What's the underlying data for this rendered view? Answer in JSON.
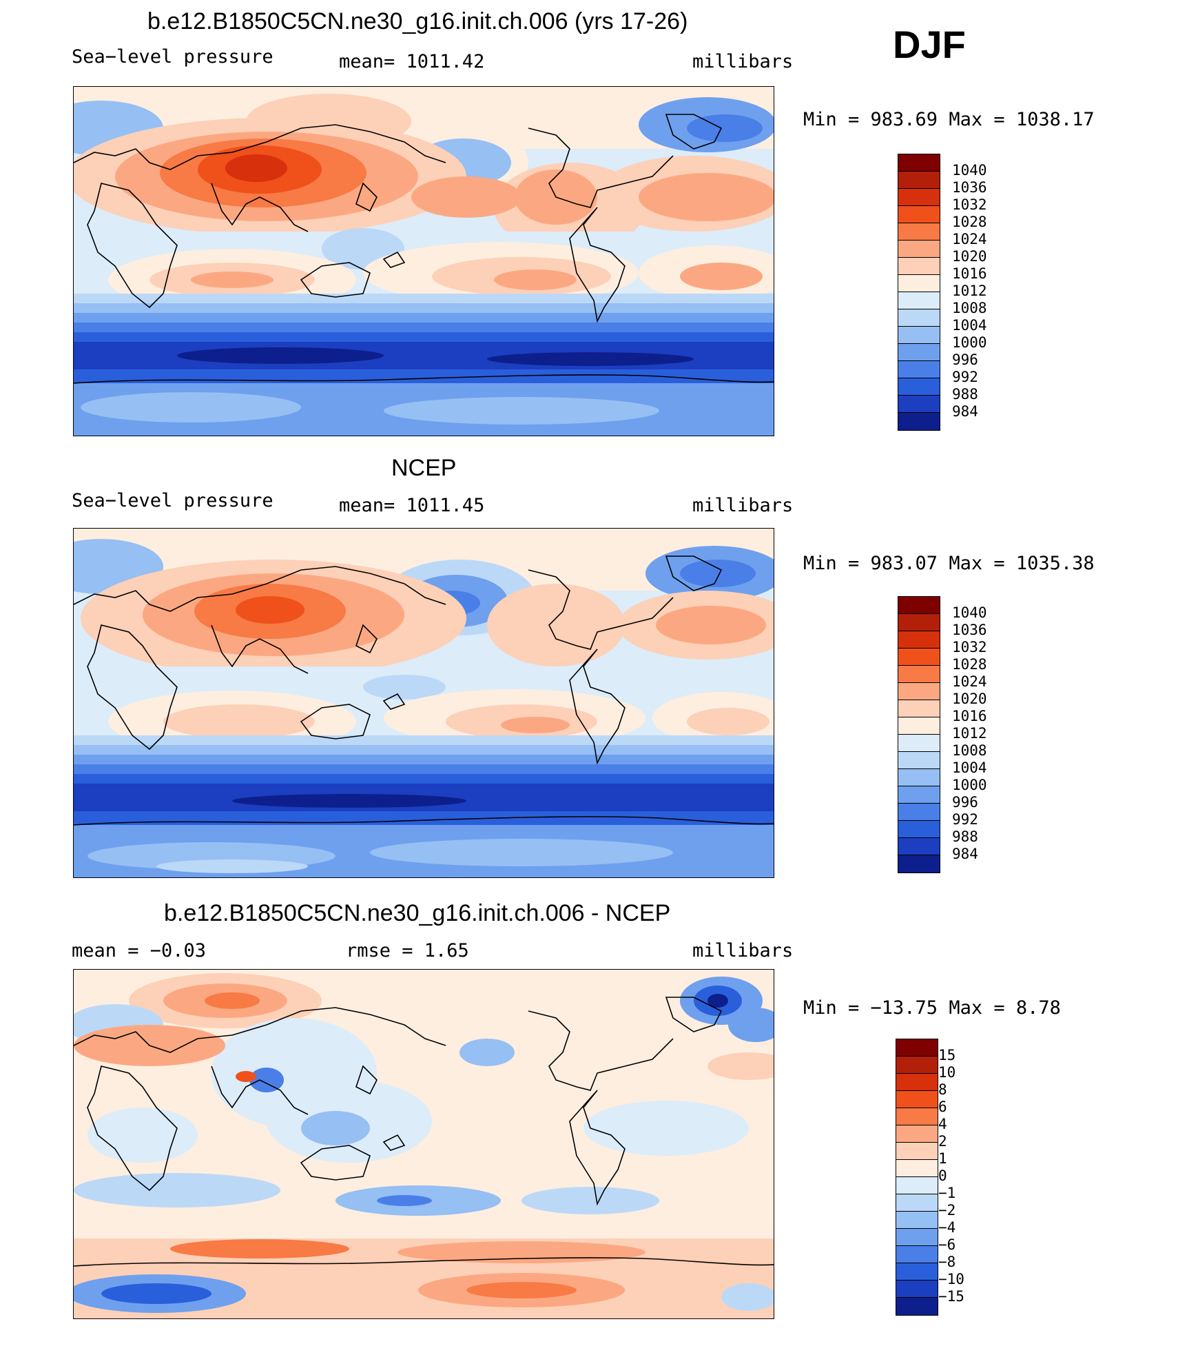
{
  "season": "DJF",
  "panels": [
    {
      "title": "b.e12.B1850C5CN.ne30_g16.init.ch.006 (yrs 17-26)",
      "left_label": "Sea−level pressure",
      "center_label": "mean=  1011.42",
      "units": "millibars",
      "minmax": "Min  =  983.69  Max  =  1038.17"
    },
    {
      "title": "NCEP",
      "left_label": "Sea−level pressure",
      "center_label": "mean=  1011.45",
      "units": "millibars",
      "minmax": "Min  =  983.07  Max  =  1035.38"
    },
    {
      "title": "b.e12.B1850C5CN.ne30_g16.init.ch.006 - NCEP",
      "left_label": "mean  =    −0.03",
      "center_label": "rmse  =     1.65",
      "units": "millibars",
      "minmax": "Min  =  −13.75  Max  =     8.78"
    }
  ],
  "colorbars": {
    "abs_labels": [
      "1040",
      "1036",
      "1032",
      "1028",
      "1024",
      "1020",
      "1016",
      "1012",
      "1008",
      "1004",
      "1000",
      "996",
      "992",
      "988",
      "984"
    ],
    "diff_labels": [
      "15",
      "10",
      "8",
      "6",
      "4",
      "2",
      "1",
      "0",
      "−1",
      "−2",
      "−4",
      "−6",
      "−8",
      "−10",
      "−15"
    ],
    "colors": [
      "#7f0000",
      "#b3200a",
      "#d7300c",
      "#f0501a",
      "#f87a45",
      "#fba882",
      "#fdd0b8",
      "#fdeee0",
      "#dcecf9",
      "#bcd8f7",
      "#96bff3",
      "#6ea0ee",
      "#4a7fe8",
      "#2a5fdc",
      "#1b3fc0",
      "#0d1f8c"
    ]
  }
}
